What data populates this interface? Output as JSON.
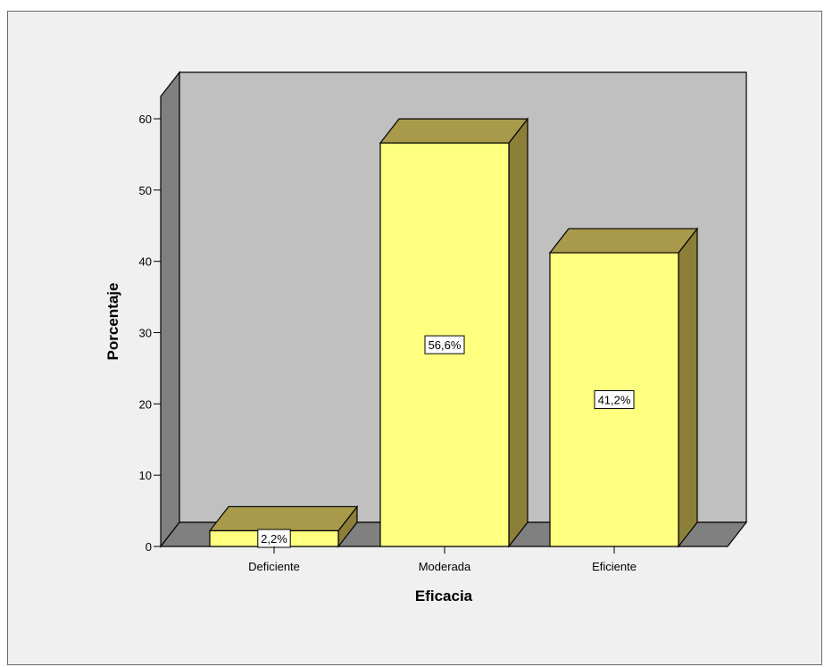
{
  "chart_data": {
    "type": "bar",
    "style": "3d",
    "categories": [
      "Deficiente",
      "Moderada",
      "Eficiente"
    ],
    "values": [
      2.2,
      56.6,
      41.2
    ],
    "data_labels": [
      "2,2%",
      "56,6%",
      "41,2%"
    ],
    "xlabel": "Eficacia",
    "ylabel": "Porcentaje",
    "ylim": [
      0,
      60
    ],
    "yticks": [
      0,
      10,
      20,
      30,
      40,
      50,
      60
    ],
    "grid": false,
    "colors": {
      "bar_front": "#ffff80",
      "bar_top": "#a89a4a",
      "bar_side": "#8c7f38",
      "wall_back": "#c0c0c0",
      "wall_side": "#808080",
      "floor": "#808080",
      "frame_bg": "#f0f0f0"
    }
  }
}
